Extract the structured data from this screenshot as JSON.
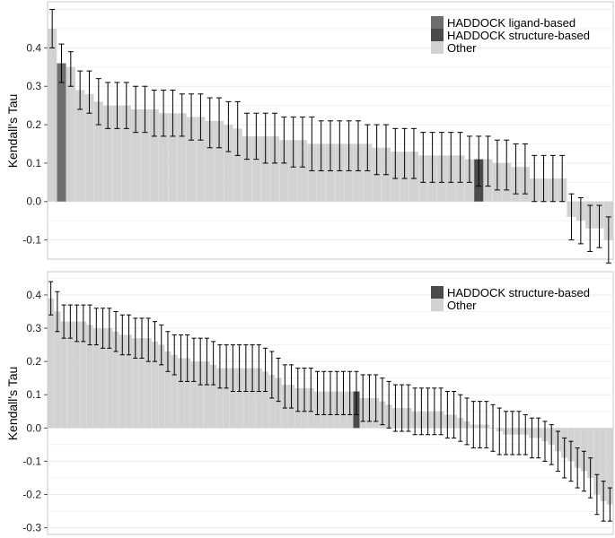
{
  "colors": {
    "ligand": "#6e6e6e",
    "structure": "#4a4a4a",
    "other": "#d2d2d2",
    "grid": "#ececec",
    "errorbar": "#000000",
    "panel_border": "#c8c8c8"
  },
  "chart_data": [
    {
      "type": "bar",
      "title": "",
      "xlabel": "",
      "ylabel": "Kendall's Tau",
      "ylim": [
        -0.15,
        0.52
      ],
      "yticks": [
        -0.1,
        0.0,
        0.1,
        0.2,
        0.3,
        0.4
      ],
      "ytick_labels": [
        "-0.1",
        "0.0",
        "0.1",
        "0.2",
        "0.3",
        "0.4"
      ],
      "legend": {
        "position": "top-right",
        "entries": [
          {
            "label": "HADDOCK ligand-based",
            "group": "ligand"
          },
          {
            "label": "HADDOCK structure-based",
            "group": "structure"
          },
          {
            "label": "Other",
            "group": "other"
          }
        ]
      },
      "highlight": {
        "1": "ligand",
        "46": "structure"
      },
      "values": [
        0.45,
        0.36,
        0.35,
        0.29,
        0.28,
        0.26,
        0.25,
        0.25,
        0.25,
        0.24,
        0.24,
        0.24,
        0.23,
        0.23,
        0.23,
        0.22,
        0.22,
        0.21,
        0.21,
        0.2,
        0.19,
        0.17,
        0.17,
        0.17,
        0.17,
        0.16,
        0.16,
        0.16,
        0.15,
        0.15,
        0.15,
        0.15,
        0.15,
        0.15,
        0.15,
        0.14,
        0.14,
        0.13,
        0.13,
        0.13,
        0.12,
        0.12,
        0.12,
        0.12,
        0.12,
        0.11,
        0.11,
        0.11,
        0.1,
        0.1,
        0.09,
        0.09,
        0.06,
        0.06,
        0.06,
        0.06,
        -0.04,
        -0.05,
        -0.07,
        -0.07,
        -0.1
      ],
      "error_low": [
        0.4,
        0.31,
        0.3,
        0.24,
        0.23,
        0.2,
        0.19,
        0.19,
        0.19,
        0.18,
        0.18,
        0.17,
        0.17,
        0.17,
        0.17,
        0.16,
        0.16,
        0.14,
        0.14,
        0.13,
        0.12,
        0.11,
        0.11,
        0.1,
        0.1,
        0.1,
        0.09,
        0.09,
        0.08,
        0.08,
        0.08,
        0.08,
        0.08,
        0.08,
        0.08,
        0.07,
        0.07,
        0.06,
        0.06,
        0.06,
        0.05,
        0.05,
        0.05,
        0.05,
        0.05,
        0.05,
        0.04,
        0.04,
        0.03,
        0.03,
        0.02,
        0.02,
        0.0,
        0.0,
        0.0,
        0.0,
        -0.1,
        -0.11,
        -0.13,
        -0.12,
        -0.16
      ],
      "error_high": [
        0.5,
        0.41,
        0.39,
        0.34,
        0.34,
        0.32,
        0.31,
        0.31,
        0.31,
        0.3,
        0.3,
        0.29,
        0.29,
        0.29,
        0.28,
        0.28,
        0.28,
        0.27,
        0.27,
        0.26,
        0.26,
        0.23,
        0.23,
        0.23,
        0.23,
        0.22,
        0.22,
        0.22,
        0.22,
        0.21,
        0.21,
        0.21,
        0.21,
        0.21,
        0.2,
        0.2,
        0.2,
        0.19,
        0.19,
        0.19,
        0.18,
        0.18,
        0.18,
        0.18,
        0.18,
        0.17,
        0.17,
        0.17,
        0.16,
        0.16,
        0.15,
        0.15,
        0.12,
        0.12,
        0.12,
        0.12,
        0.02,
        0.01,
        -0.01,
        -0.01,
        -0.04
      ]
    },
    {
      "type": "bar",
      "title": "",
      "xlabel": "",
      "ylabel": "Kendall's Tau",
      "ylim": [
        -0.32,
        0.47
      ],
      "yticks": [
        -0.3,
        -0.2,
        -0.1,
        0.0,
        0.1,
        0.2,
        0.3,
        0.4
      ],
      "ytick_labels": [
        "-0.3",
        "-0.2",
        "-0.1",
        "0.0",
        "0.1",
        "0.2",
        "0.3",
        "0.4"
      ],
      "legend": {
        "position": "top-right",
        "entries": [
          {
            "label": "HADDOCK structure-based",
            "group": "structure"
          },
          {
            "label": "Other",
            "group": "other"
          }
        ]
      },
      "highlight": {
        "47": "structure"
      },
      "values": [
        0.39,
        0.35,
        0.32,
        0.32,
        0.32,
        0.32,
        0.31,
        0.3,
        0.3,
        0.3,
        0.29,
        0.28,
        0.28,
        0.27,
        0.27,
        0.27,
        0.26,
        0.25,
        0.23,
        0.22,
        0.21,
        0.21,
        0.2,
        0.2,
        0.2,
        0.19,
        0.18,
        0.18,
        0.18,
        0.18,
        0.18,
        0.18,
        0.18,
        0.17,
        0.16,
        0.15,
        0.13,
        0.13,
        0.12,
        0.12,
        0.12,
        0.11,
        0.11,
        0.11,
        0.11,
        0.11,
        0.11,
        0.11,
        0.09,
        0.09,
        0.09,
        0.08,
        0.07,
        0.06,
        0.06,
        0.06,
        0.05,
        0.05,
        0.05,
        0.05,
        0.05,
        0.04,
        0.04,
        0.03,
        0.02,
        0.01,
        0.01,
        0.01,
        0.0,
        -0.01,
        -0.02,
        -0.02,
        -0.02,
        -0.02,
        -0.03,
        -0.03,
        -0.04,
        -0.05,
        -0.07,
        -0.09,
        -0.1,
        -0.12,
        -0.13,
        -0.15,
        -0.2,
        -0.22,
        -0.23
      ],
      "error_low": [
        0.34,
        0.29,
        0.27,
        0.27,
        0.26,
        0.26,
        0.25,
        0.25,
        0.24,
        0.24,
        0.23,
        0.22,
        0.22,
        0.21,
        0.21,
        0.2,
        0.2,
        0.19,
        0.17,
        0.16,
        0.14,
        0.14,
        0.14,
        0.13,
        0.13,
        0.13,
        0.12,
        0.12,
        0.11,
        0.11,
        0.11,
        0.11,
        0.11,
        0.11,
        0.09,
        0.08,
        0.06,
        0.06,
        0.05,
        0.05,
        0.05,
        0.04,
        0.04,
        0.04,
        0.04,
        0.04,
        0.04,
        0.04,
        0.02,
        0.02,
        0.02,
        0.01,
        0.0,
        -0.01,
        -0.01,
        -0.01,
        -0.02,
        -0.02,
        -0.02,
        -0.02,
        -0.02,
        -0.03,
        -0.03,
        -0.04,
        -0.05,
        -0.06,
        -0.06,
        -0.06,
        -0.07,
        -0.08,
        -0.08,
        -0.08,
        -0.08,
        -0.08,
        -0.09,
        -0.09,
        -0.1,
        -0.11,
        -0.13,
        -0.15,
        -0.16,
        -0.18,
        -0.19,
        -0.21,
        -0.26,
        -0.28,
        -0.28
      ],
      "error_high": [
        0.44,
        0.41,
        0.37,
        0.37,
        0.37,
        0.37,
        0.37,
        0.36,
        0.36,
        0.36,
        0.35,
        0.34,
        0.34,
        0.33,
        0.33,
        0.33,
        0.32,
        0.31,
        0.29,
        0.28,
        0.28,
        0.28,
        0.27,
        0.27,
        0.27,
        0.26,
        0.25,
        0.25,
        0.25,
        0.25,
        0.25,
        0.25,
        0.25,
        0.24,
        0.23,
        0.21,
        0.19,
        0.19,
        0.18,
        0.18,
        0.18,
        0.17,
        0.17,
        0.17,
        0.17,
        0.17,
        0.17,
        0.17,
        0.16,
        0.16,
        0.16,
        0.15,
        0.14,
        0.13,
        0.13,
        0.13,
        0.12,
        0.12,
        0.12,
        0.12,
        0.12,
        0.11,
        0.11,
        0.1,
        0.09,
        0.08,
        0.08,
        0.08,
        0.07,
        0.06,
        0.05,
        0.05,
        0.05,
        0.04,
        0.03,
        0.03,
        0.02,
        0.01,
        -0.01,
        -0.03,
        -0.04,
        -0.06,
        -0.07,
        -0.09,
        -0.14,
        -0.16,
        -0.18
      ]
    }
  ]
}
